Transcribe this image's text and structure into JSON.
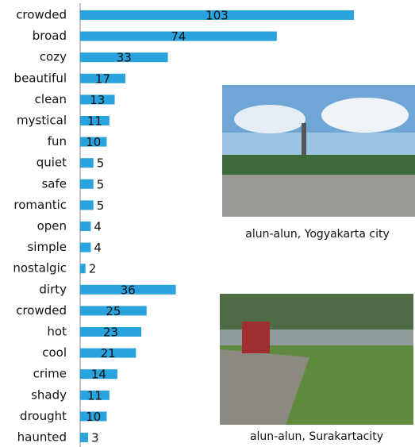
{
  "chart_data": {
    "type": "bar",
    "orientation": "horizontal",
    "categories": [
      "crowded",
      "broad",
      "cozy",
      "beautiful",
      "clean",
      "mystical",
      "fun",
      "quiet",
      "safe",
      "romantic",
      "open",
      "simple",
      "nostalgic",
      "dirty",
      "crowded",
      "hot",
      "cool",
      "crime",
      "shady",
      "drought",
      "haunted"
    ],
    "values": [
      103,
      74,
      33,
      17,
      13,
      11,
      10,
      5,
      5,
      5,
      4,
      4,
      2,
      36,
      25,
      23,
      21,
      14,
      11,
      10,
      3
    ],
    "color": "#29a3dd",
    "annotations": [
      "alun-alun, Yogyakarta city",
      "alun-alun, Surakartacity"
    ]
  }
}
